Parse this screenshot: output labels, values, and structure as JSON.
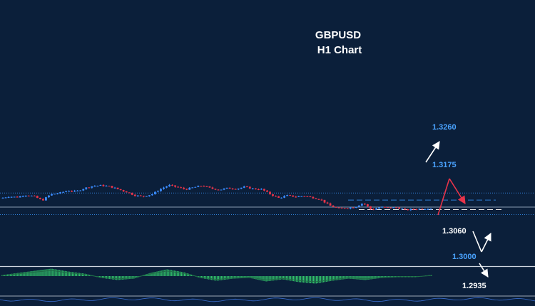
{
  "chart_data": {
    "type": "candlestick",
    "symbol": "GBPUSD",
    "timeframe": "H1 Chart",
    "colors": {
      "background": "#0b1f3a",
      "bull": "#3b8cff",
      "bear": "#e8344a",
      "grid_line": "#2f7fd6",
      "resistance_line": "#2f7fd6",
      "support_line": "#e6e6e6",
      "level_blue": "#4aa3ff",
      "level_white": "#ffffff",
      "arrow_up": "#ffffff",
      "arrow_down": "#e8344a",
      "histogram": "#32c26a"
    },
    "levels": [
      {
        "value": "1.3260",
        "color": "blue",
        "style": "dotted"
      },
      {
        "value": "1.3175",
        "color": "blue",
        "style": "dashed"
      },
      {
        "value": "1.3060",
        "color": "white",
        "style": "dashed"
      },
      {
        "value": "1.3000",
        "color": "blue",
        "style": "dotted"
      },
      {
        "value": "1.2935",
        "color": "white",
        "style": "none"
      }
    ],
    "price_path": [
      1.3195,
      1.3218,
      1.321,
      1.3235,
      1.3222,
      1.317,
      1.3245,
      1.3258,
      1.329,
      1.3278,
      1.3318,
      1.3345,
      1.3352,
      1.334,
      1.3305,
      1.3272,
      1.323,
      1.322,
      1.3245,
      1.3308,
      1.3355,
      1.333,
      1.3305,
      1.333,
      1.335,
      1.3315,
      1.33,
      1.332,
      1.331,
      1.3335,
      1.331,
      1.3305,
      1.3245,
      1.32,
      1.323,
      1.3215,
      1.3225,
      1.3205,
      1.318,
      1.311,
      1.3075,
      1.3078,
      1.309,
      1.314,
      1.3055,
      1.309,
      1.308,
      1.3085,
      1.3055,
      1.3065,
      1.307,
      1.3075
    ],
    "histogram_profile": [
      0.1,
      0.4,
      0.7,
      1.0,
      0.6,
      0.3,
      -0.2,
      -0.5,
      -0.3,
      0.4,
      0.9,
      0.5,
      -0.2,
      -0.6,
      -0.3,
      -0.2,
      -0.7,
      -0.4,
      -0.8,
      -1.0,
      -0.6,
      -0.3,
      -0.5,
      -0.2,
      -0.1,
      -0.1,
      0.1
    ],
    "projection": [
      {
        "from": 1.306,
        "to": 1.326,
        "direction": "up",
        "color": "white"
      },
      {
        "from": 1.3075,
        "to": 1.3165,
        "direction": "up",
        "color": "red"
      },
      {
        "from": 1.3165,
        "to": 1.311,
        "direction": "down",
        "color": "red"
      },
      {
        "from": 1.304,
        "to": 1.299,
        "direction": "down",
        "color": "white"
      },
      {
        "from": 1.299,
        "to": 1.302,
        "direction": "up",
        "color": "white"
      },
      {
        "from": 1.2985,
        "to": 1.2945,
        "direction": "down",
        "color": "white"
      }
    ]
  }
}
